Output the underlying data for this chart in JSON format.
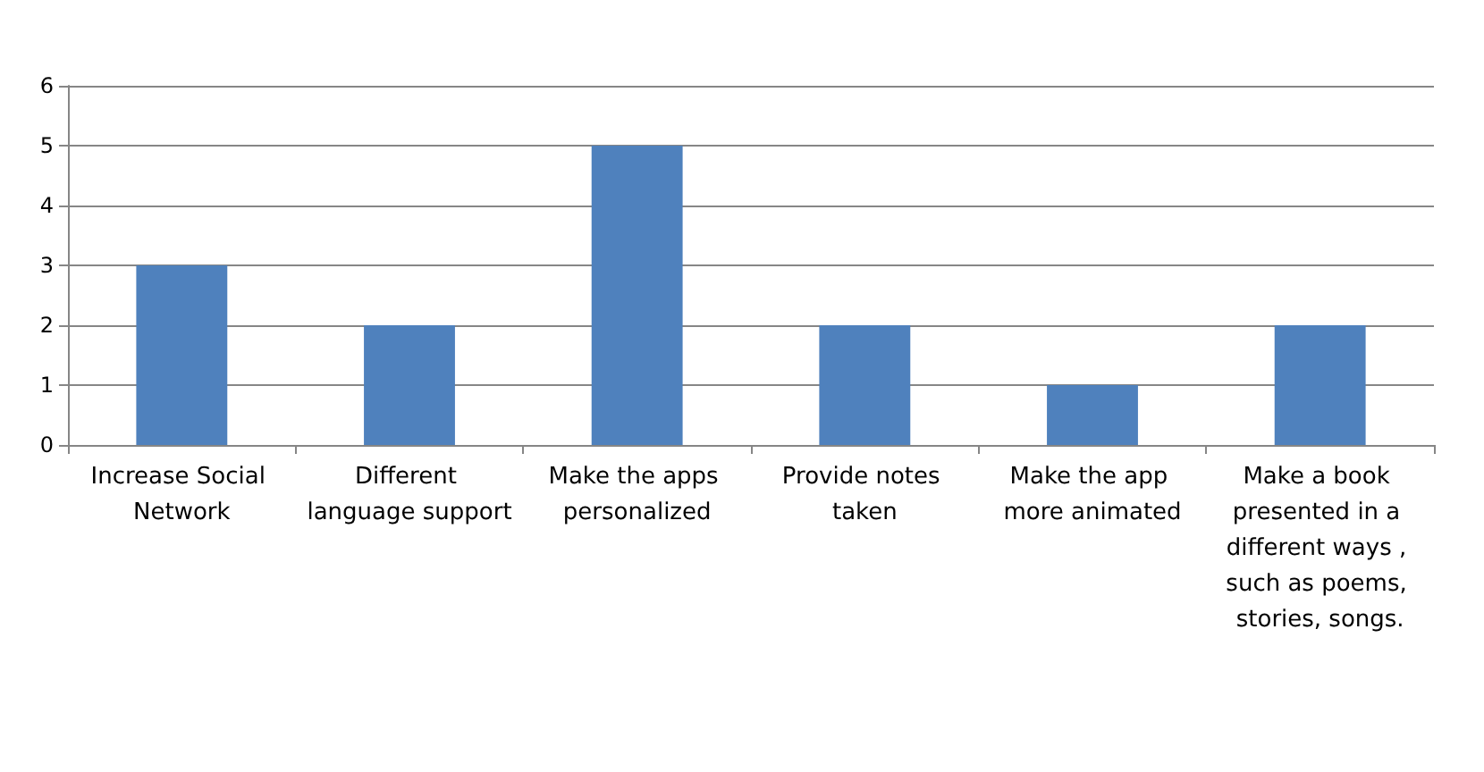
{
  "chart_data": {
    "type": "bar",
    "categories": [
      "Increase Social Network",
      "Different language support",
      "Make the apps personalized",
      "Provide notes taken",
      "Make the app more animated",
      "Make a book presented in a different ways , such as poems, stories, songs."
    ],
    "values": [
      3,
      2,
      5,
      2,
      1,
      2
    ],
    "color": "#4f81bd",
    "ylim": [
      0,
      6
    ],
    "yticks": [
      0,
      1,
      2,
      3,
      4,
      5,
      6
    ],
    "grid": "y"
  }
}
